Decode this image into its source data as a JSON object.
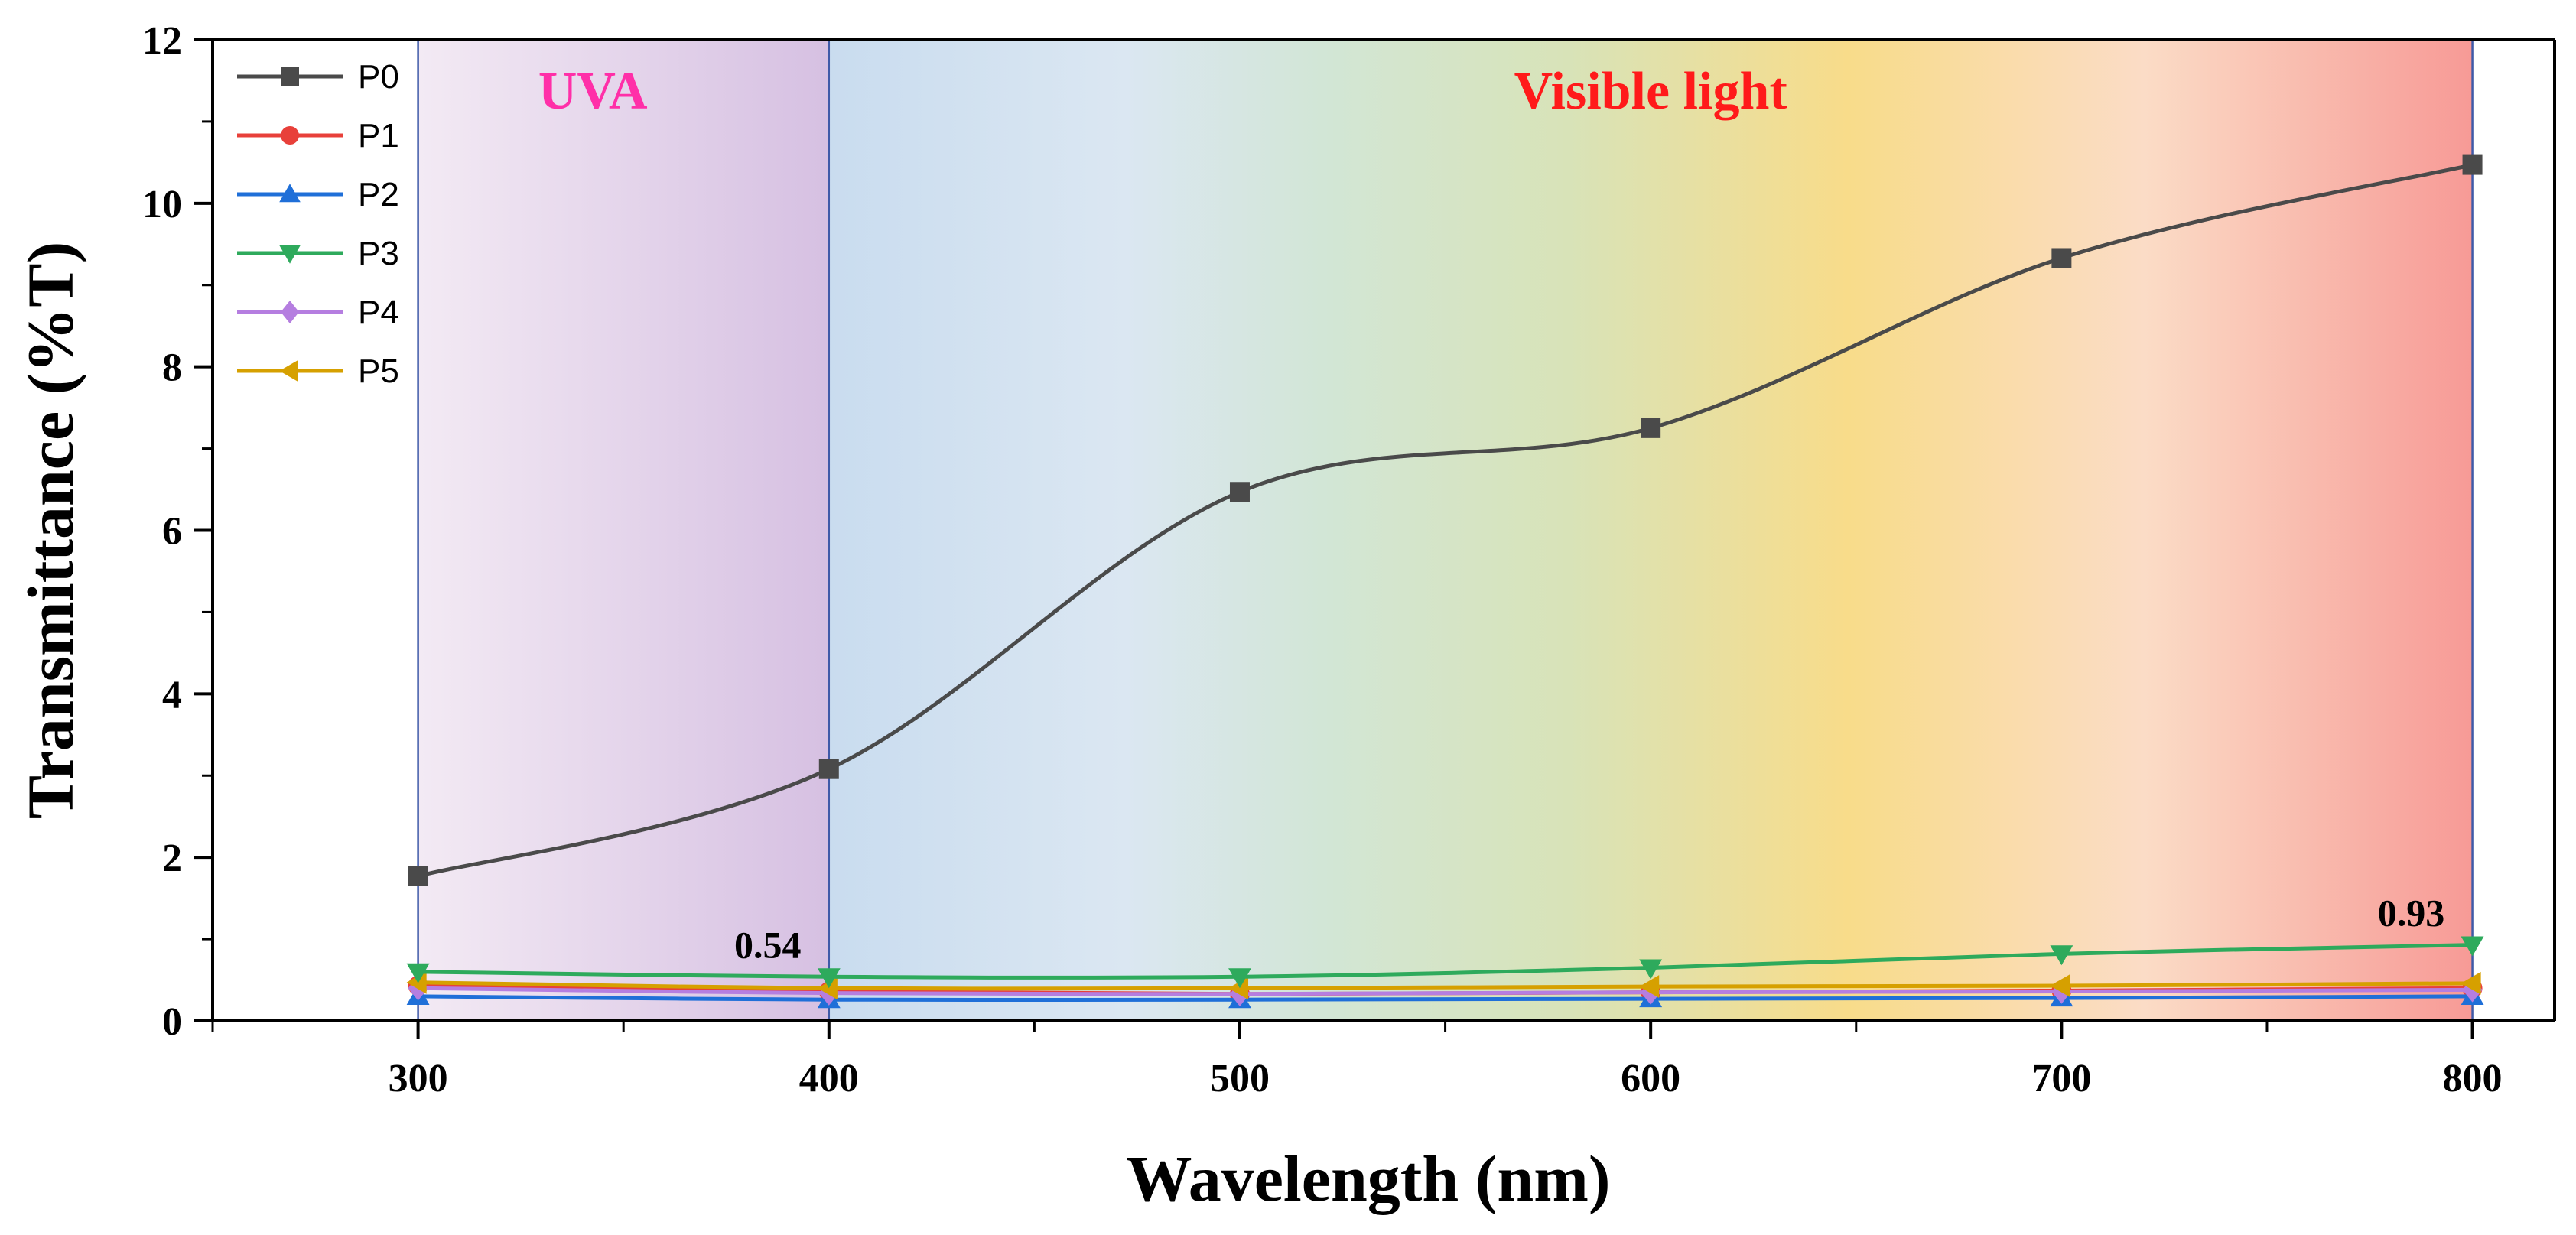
{
  "chart_data": {
    "type": "line",
    "title": "",
    "xlabel": "Wavelength (nm)",
    "ylabel": "Transmittance (%T)",
    "xlim": [
      250,
      820
    ],
    "ylim": [
      0,
      12
    ],
    "x_ticks": [
      300,
      400,
      500,
      600,
      700,
      800
    ],
    "y_ticks": [
      0,
      2,
      4,
      6,
      8,
      10,
      12
    ],
    "x_ticks_minor": [
      250,
      350,
      450,
      550,
      650,
      750
    ],
    "y_ticks_minor": [
      1,
      3,
      5,
      7,
      9,
      11
    ],
    "grid": false,
    "legend_position": "top-left",
    "x": [
      300,
      400,
      500,
      600,
      700,
      800
    ],
    "series": [
      {
        "name": "P0",
        "color": "#4a4a4a",
        "marker": "square",
        "values": [
          1.77,
          3.08,
          6.47,
          7.25,
          9.33,
          10.47
        ]
      },
      {
        "name": "P1",
        "color": "#e8403a",
        "marker": "circle",
        "values": [
          0.43,
          0.36,
          0.33,
          0.35,
          0.37,
          0.4
        ]
      },
      {
        "name": "P2",
        "color": "#1f6fd8",
        "marker": "triangle-up",
        "values": [
          0.3,
          0.26,
          0.26,
          0.27,
          0.28,
          0.3
        ]
      },
      {
        "name": "P3",
        "color": "#2eaa5c",
        "marker": "triangle-down",
        "values": [
          0.6,
          0.54,
          0.54,
          0.65,
          0.82,
          0.93
        ]
      },
      {
        "name": "P4",
        "color": "#b57ee0",
        "marker": "diamond",
        "values": [
          0.4,
          0.34,
          0.33,
          0.35,
          0.36,
          0.38
        ]
      },
      {
        "name": "P5",
        "color": "#d6a000",
        "marker": "triangle-left",
        "values": [
          0.47,
          0.4,
          0.4,
          0.42,
          0.43,
          0.46
        ]
      }
    ],
    "regions": [
      {
        "label": "UVA",
        "from": 300,
        "to": 400,
        "label_color": "#ff2fa8"
      },
      {
        "label": "Visible light",
        "from": 400,
        "to": 800,
        "label_color": "#ff1a1a"
      }
    ],
    "annotations": [
      {
        "text": "0.54",
        "x": 400,
        "y": 0.54
      },
      {
        "text": "0.93",
        "x": 800,
        "y": 0.93
      }
    ]
  }
}
